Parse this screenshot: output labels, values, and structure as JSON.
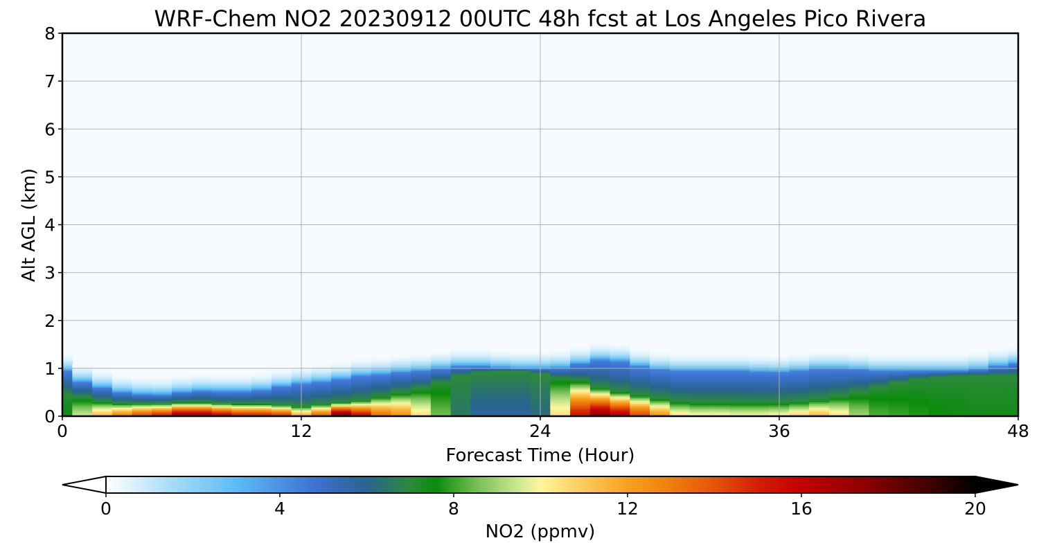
{
  "chart_data": {
    "type": "heatmap",
    "title": "WRF-Chem NO2  20230912 00UTC 48h fcst at Los Angeles Pico Rivera",
    "xlabel": "Forecast Time (Hour)",
    "ylabel": "Alt AGL (km)",
    "xlim": [
      0,
      48
    ],
    "ylim": [
      0,
      8
    ],
    "x_ticks": [
      "0",
      "12",
      "24",
      "36",
      "48"
    ],
    "y_ticks": [
      "0",
      "1",
      "2",
      "3",
      "4",
      "5",
      "6",
      "7",
      "8"
    ],
    "grid": true,
    "colorbar": {
      "label": "NO2  (ppmv)",
      "range": [
        0,
        20
      ],
      "ticks": [
        "0",
        "4",
        "8",
        "12",
        "16",
        "20"
      ],
      "extend": "both",
      "orientation": "horizontal",
      "placement": "bottom",
      "color_stops": [
        {
          "v": 0,
          "c": "#ffffff"
        },
        {
          "v": 1.5,
          "c": "#a8dcf7"
        },
        {
          "v": 3.0,
          "c": "#5cbcf5"
        },
        {
          "v": 4.8,
          "c": "#3d72d2"
        },
        {
          "v": 6.0,
          "c": "#29648f"
        },
        {
          "v": 7.0,
          "c": "#2c8a3a"
        },
        {
          "v": 7.6,
          "c": "#0a8c0a"
        },
        {
          "v": 8.6,
          "c": "#7ec25a"
        },
        {
          "v": 9.6,
          "c": "#d7ec98"
        },
        {
          "v": 10.0,
          "c": "#fff59a"
        },
        {
          "v": 11.0,
          "c": "#fcc95a"
        },
        {
          "v": 12.0,
          "c": "#f7a21e"
        },
        {
          "v": 13.0,
          "c": "#f07e0c"
        },
        {
          "v": 14.0,
          "c": "#e5540a"
        },
        {
          "v": 15.0,
          "c": "#d41e05"
        },
        {
          "v": 16.0,
          "c": "#c40000"
        },
        {
          "v": 17.5,
          "c": "#8a0000"
        },
        {
          "v": 19.0,
          "c": "#3d0000"
        },
        {
          "v": 20.0,
          "c": "#000000"
        }
      ]
    },
    "series": [
      {
        "name": "",
        "field": "NO2 mixing ratio vs forecast hour (x) and altitude AGL km (y)",
        "x_hours": [
          0,
          1,
          2,
          3,
          4,
          5,
          6,
          7,
          8,
          9,
          10,
          11,
          12,
          13,
          14,
          15,
          16,
          17,
          18,
          19,
          20,
          21,
          22,
          23,
          24,
          25,
          26,
          27,
          28,
          29,
          30,
          31,
          32,
          33,
          34,
          35,
          36,
          37,
          38,
          39,
          40,
          41,
          42,
          43,
          44,
          45,
          46,
          47,
          48
        ],
        "surface_value": [
          7.5,
          9.5,
          11.5,
          13.0,
          14.5,
          15.5,
          17.5,
          17.5,
          16.5,
          15.5,
          15.5,
          15.0,
          12.0,
          14.0,
          18.5,
          16.0,
          13.5,
          12.5,
          10.5,
          8.5,
          6.5,
          5.8,
          5.8,
          5.8,
          6.2,
          10.5,
          15.5,
          17.5,
          16.5,
          14.5,
          12.5,
          10.5,
          10.2,
          10.2,
          10.0,
          10.0,
          10.2,
          10.8,
          11.5,
          10.5,
          9.0,
          8.2,
          8.0,
          7.8,
          7.6,
          7.5,
          7.4,
          7.4,
          7.4
        ],
        "mixing_depth_km": [
          0.95,
          0.72,
          0.6,
          0.5,
          0.46,
          0.45,
          0.5,
          0.53,
          0.52,
          0.52,
          0.55,
          0.62,
          0.68,
          0.72,
          0.78,
          0.85,
          0.88,
          0.92,
          0.95,
          1.0,
          1.05,
          1.05,
          1.02,
          1.0,
          1.0,
          1.02,
          1.1,
          1.18,
          1.15,
          1.05,
          0.98,
          0.95,
          0.95,
          0.95,
          0.95,
          0.93,
          0.92,
          0.95,
          1.0,
          1.0,
          0.98,
          0.95,
          0.95,
          0.95,
          0.95,
          0.95,
          0.98,
          1.05,
          1.1
        ],
        "enhanced_layer_km": [
          0.45,
          0.4,
          0.32,
          0.28,
          0.28,
          0.28,
          0.3,
          0.3,
          0.28,
          0.27,
          0.27,
          0.25,
          0.22,
          0.26,
          0.3,
          0.34,
          0.42,
          0.5,
          0.58,
          0.7,
          0.85,
          0.92,
          0.95,
          0.95,
          0.9,
          0.8,
          0.75,
          0.6,
          0.52,
          0.45,
          0.38,
          0.32,
          0.3,
          0.3,
          0.3,
          0.3,
          0.3,
          0.32,
          0.36,
          0.42,
          0.5,
          0.6,
          0.7,
          0.78,
          0.82,
          0.85,
          0.85,
          0.85,
          0.85
        ]
      }
    ]
  }
}
